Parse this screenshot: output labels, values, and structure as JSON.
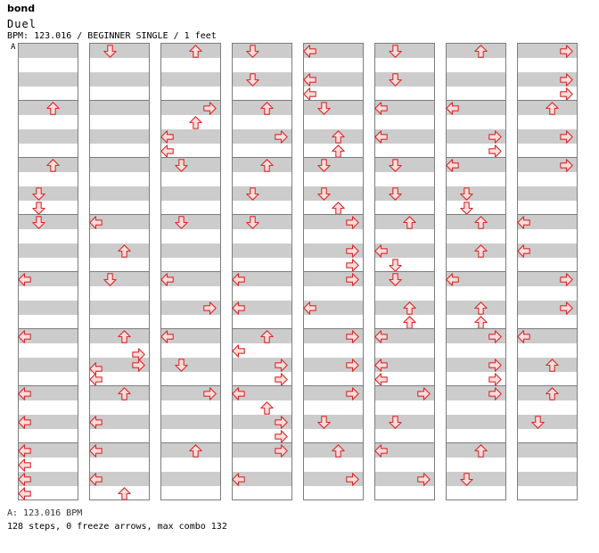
{
  "song": {
    "title": "bond",
    "artist": "Duel",
    "info": "BPM: 123.016 / BEGINNER SINGLE / 1 feet"
  },
  "section_marker": "A",
  "footer": {
    "bpm_line": "A: 123.016 BPM",
    "stats_line": "128 steps, 0 freeze arrows, max combo 132"
  },
  "colors": {
    "arrow_fill": "#ffdcdc",
    "arrow_stroke": "#d92b2b",
    "band": "#cccccc",
    "measure_border": "#7d7d7d",
    "section_line": "#3399ff"
  },
  "columns": [
    [
      [],
      [
        "U"
      ],
      [
        "U",
        "D",
        "D"
      ],
      [
        "D"
      ],
      [
        "L"
      ],
      [
        "L"
      ],
      [
        "L",
        "L"
      ],
      [
        "L",
        "L",
        "L",
        "L"
      ]
    ],
    [
      [
        "D"
      ],
      [],
      [],
      [
        "L",
        "U"
      ],
      [
        "D"
      ],
      [
        "U",
        "R",
        "R",
        "L",
        "L"
      ],
      [
        "U",
        "L"
      ],
      [
        "L",
        "L",
        "U"
      ]
    ],
    [
      [
        "U"
      ],
      [
        "R",
        "U",
        "L",
        "L"
      ],
      [
        "D"
      ],
      [
        "D"
      ],
      [
        "L",
        "R"
      ],
      [
        "L",
        "D"
      ],
      [
        "R"
      ],
      [
        "U"
      ]
    ],
    [
      [
        "D",
        "D"
      ],
      [
        "U",
        "R"
      ],
      [
        "U",
        "D"
      ],
      [
        "D"
      ],
      [
        "L",
        "L"
      ],
      [
        "U",
        "L",
        "R",
        "R"
      ],
      [
        "L",
        "U",
        "R",
        "R"
      ],
      [
        "R",
        "L"
      ]
    ],
    [
      [
        "L",
        "L",
        "L"
      ],
      [
        "D",
        "U",
        "U"
      ],
      [
        "D",
        "D",
        "U"
      ],
      [
        "R",
        "R",
        "R"
      ],
      [
        "R",
        "L"
      ],
      [
        "R",
        "R"
      ],
      [
        "R",
        "D"
      ],
      [
        "U",
        "R"
      ]
    ],
    [
      [
        "D",
        "D"
      ],
      [
        "L",
        "L"
      ],
      [
        "D",
        "D"
      ],
      [
        "U",
        "L",
        "D"
      ],
      [
        "D",
        "U",
        "U"
      ],
      [
        "L",
        "L",
        "L"
      ],
      [
        "R",
        "D"
      ],
      [
        "L",
        "R"
      ]
    ],
    [
      [
        "U"
      ],
      [
        "L",
        "R",
        "R"
      ],
      [
        "L",
        "D",
        "D"
      ],
      [
        "U",
        "U"
      ],
      [
        "L",
        "U",
        "U"
      ],
      [
        "R",
        "R",
        "R"
      ],
      [
        "R"
      ],
      [
        "U",
        "D"
      ]
    ],
    [
      [
        "R",
        "R",
        "R"
      ],
      [
        "U",
        "R"
      ],
      [
        "R"
      ],
      [
        "L",
        "L"
      ],
      [
        "R",
        "R"
      ],
      [
        "L",
        "U"
      ],
      [
        "U",
        "D"
      ],
      []
    ]
  ]
}
